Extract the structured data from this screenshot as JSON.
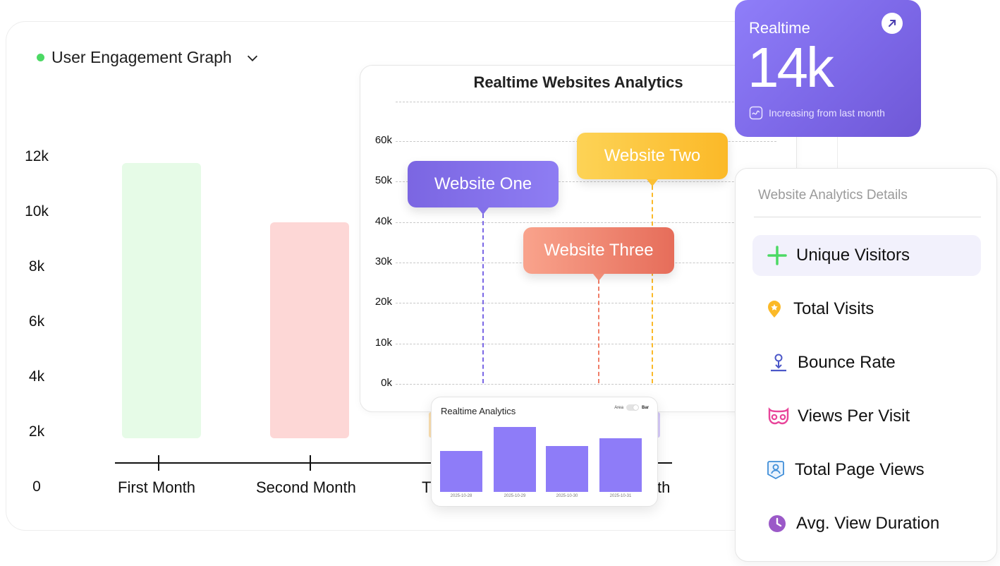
{
  "engagement": {
    "title": "User Engagement Graph",
    "status_color": "#4cd964",
    "y_ticks": [
      "12k",
      "10k",
      "8k",
      "6k",
      "4k",
      "2k",
      "0"
    ],
    "months": [
      "First Month",
      "Second Month",
      "T",
      "th"
    ]
  },
  "websites_chart": {
    "title": "Realtime Websites Analytics",
    "y_ticks": [
      "60k",
      "50k",
      "40k",
      "30k",
      "20k",
      "10k",
      "0k"
    ],
    "tooltips": {
      "one": "Website One",
      "two": "Website Two",
      "three": "Website Three"
    },
    "colors": {
      "one": "#7a67e6",
      "two": "#fbb928",
      "three": "#f07d67"
    }
  },
  "realtime_small": {
    "title": "Realtime Analytics",
    "toggle_left": "Area",
    "toggle_right": "Bar",
    "dates": [
      "2025-10-28",
      "2025-10-29",
      "2025-10-30",
      "2025-10-31"
    ],
    "bar_color": "#8e7cf8"
  },
  "realtime_card": {
    "label": "Realtime",
    "value": "14k",
    "subtitle": "Increasing from last month"
  },
  "details": {
    "title": "Website Analytics Details",
    "items": [
      {
        "label": "Unique Visitors",
        "icon": "plus-icon"
      },
      {
        "label": "Total Visits",
        "icon": "map-pin-icon"
      },
      {
        "label": "Bounce Rate",
        "icon": "bounce-icon"
      },
      {
        "label": "Views Per Visit",
        "icon": "mask-icon"
      },
      {
        "label": "Total Page Views",
        "icon": "user-badge-icon"
      },
      {
        "label": "Avg. View Duration",
        "icon": "clock-icon"
      }
    ]
  },
  "chart_data": [
    {
      "type": "bar",
      "title": "User Engagement Graph",
      "categories": [
        "First Month",
        "Second Month"
      ],
      "values": [
        12000,
        9800
      ],
      "ylabel": "",
      "xlabel": "",
      "ylim": [
        0,
        12000
      ],
      "y_ticks": [
        "0",
        "2k",
        "4k",
        "6k",
        "8k",
        "10k",
        "12k"
      ]
    },
    {
      "type": "line",
      "title": "Realtime Websites Analytics",
      "series": [
        {
          "name": "Website One",
          "value": 42000
        },
        {
          "name": "Website Two",
          "value": 49000
        },
        {
          "name": "Website Three",
          "value": 26000
        }
      ],
      "ylim": [
        0,
        60000
      ],
      "y_ticks": [
        "0k",
        "10k",
        "20k",
        "30k",
        "40k",
        "50k",
        "60k"
      ]
    },
    {
      "type": "bar",
      "title": "Realtime Analytics",
      "categories": [
        "2025-10-28",
        "2025-10-29",
        "2025-10-30",
        "2025-10-31"
      ],
      "values": [
        58,
        92,
        65,
        76
      ],
      "ylim": [
        0,
        100
      ]
    }
  ]
}
